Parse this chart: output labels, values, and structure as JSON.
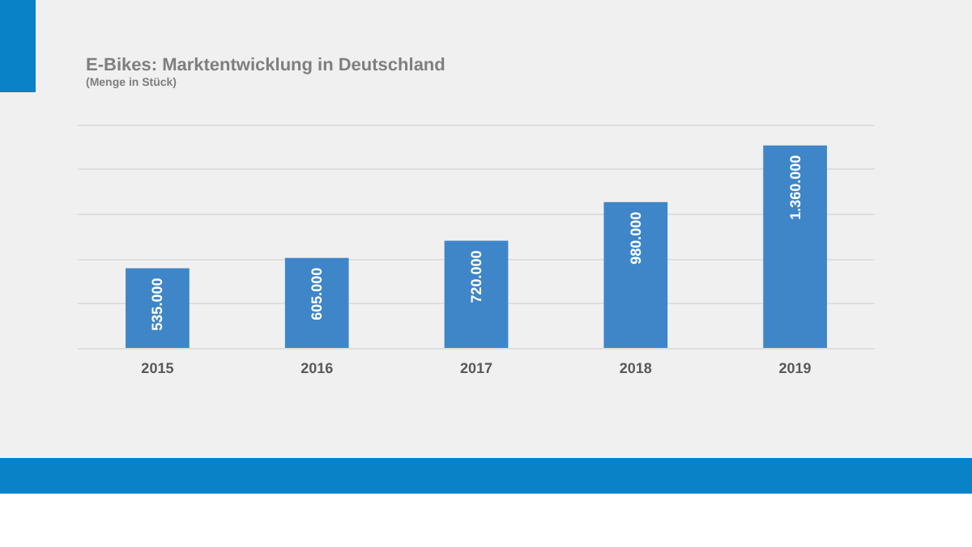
{
  "chart_data": {
    "type": "bar",
    "title": "E-Bikes: Marktentwicklung in Deutschland",
    "subtitle": "(Menge in Stück)",
    "categories": [
      "2015",
      "2016",
      "2017",
      "2018",
      "2019"
    ],
    "values": [
      535000,
      605000,
      720000,
      980000,
      1360000
    ],
    "value_labels": [
      "535.000",
      "605.000",
      "720.000",
      "980.000",
      "1.360.000"
    ],
    "color": "#3f86c8",
    "grid": "y",
    "tick_labels": "x"
  }
}
